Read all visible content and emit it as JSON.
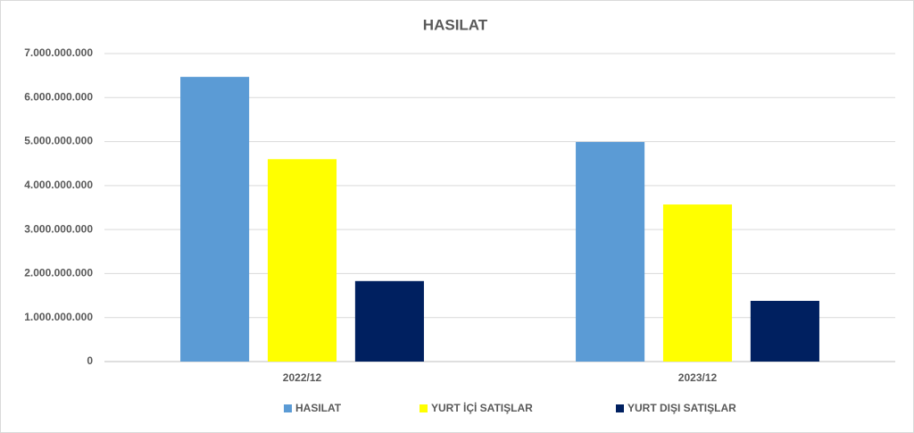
{
  "chart_data": {
    "type": "bar",
    "title": "HASILAT",
    "categories": [
      "2022/12",
      "2023/12"
    ],
    "series": [
      {
        "name": "HASILAT",
        "color": "#5b9bd5",
        "values": [
          6470000000,
          4990000000
        ]
      },
      {
        "name": "YURT İÇİ SATIŞLAR",
        "color": "#ffff00",
        "values": [
          4600000000,
          3570000000
        ]
      },
      {
        "name": "YURT DIŞI SATIŞLAR",
        "color": "#002060",
        "values": [
          1830000000,
          1380000000
        ]
      }
    ],
    "ylim": [
      0,
      7000000000
    ],
    "yticks": [
      0,
      {
        "value": 1000000000,
        "label": "1.000.000.000"
      },
      {
        "value": 2000000000,
        "label": "2.000.000.000"
      },
      {
        "value": 3000000000,
        "label": "3.000.000.000"
      },
      {
        "value": 4000000000,
        "label": "4.000.000.000"
      },
      {
        "value": 5000000000,
        "label": "5.000.000.000"
      },
      {
        "value": 6000000000,
        "label": "6.000.000.000"
      },
      {
        "value": 7000000000,
        "label": "7.000.000.000"
      }
    ],
    "grid": true,
    "legend": "bottom"
  }
}
